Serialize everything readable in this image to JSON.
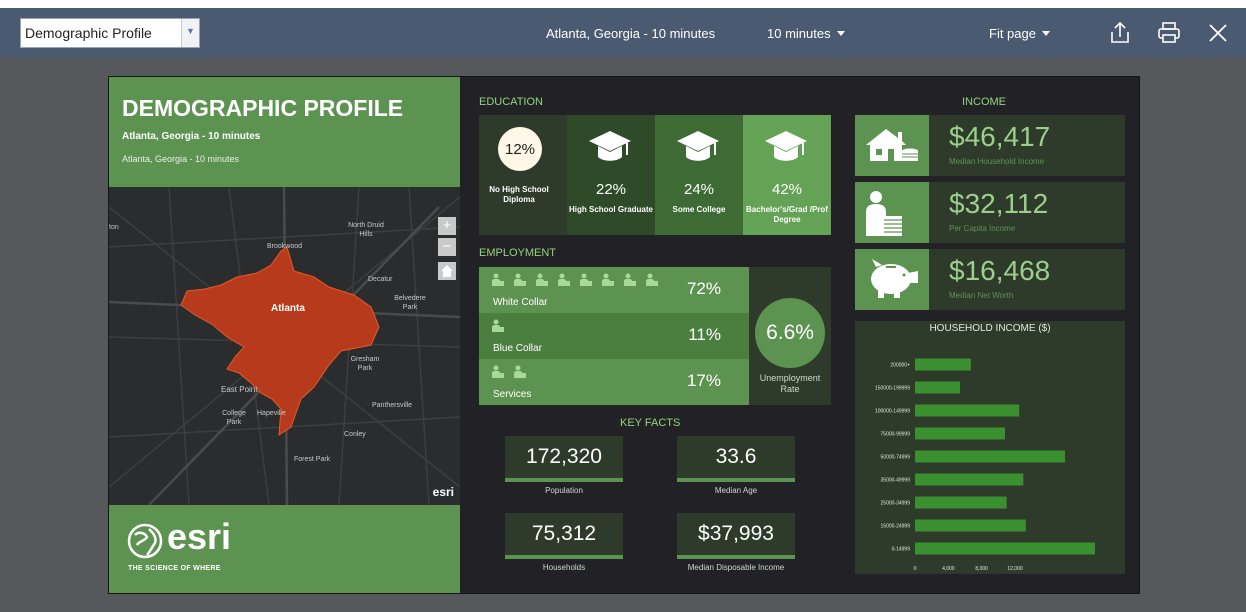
{
  "toolbar": {
    "dropdown_value": "Demographic Profile",
    "location": "Atlanta, Georgia - 10 minutes",
    "drive_time": "10 minutes",
    "fit": "Fit page",
    "icons": [
      "share-icon",
      "print-icon",
      "close-icon"
    ]
  },
  "header": {
    "title": "DEMOGRAPHIC PROFILE",
    "subtitle": "Atlanta, Georgia - 10 minutes",
    "subtitle2": "Atlanta, Georgia - 10 minutes"
  },
  "map": {
    "labels": [
      "ton",
      "North Druid Hills",
      "Brookwood",
      "Decatur",
      "Belvedere Park",
      "Atlanta",
      "Gresham Park",
      "East Point",
      "Panthersville",
      "College Park",
      "Hapeville",
      "Conley",
      "Forest Park"
    ],
    "attribution": "esri",
    "zoom_in": "+",
    "zoom_out": "−"
  },
  "footer": {
    "brand": "esri",
    "tagline": "THE SCIENCE OF WHERE"
  },
  "education": {
    "title": "EDUCATION",
    "items": [
      {
        "pct": "12%",
        "label": "No High School Diploma",
        "color": "#2e3b2a"
      },
      {
        "pct": "22%",
        "label": "High School Graduate",
        "color": "#2f4a28"
      },
      {
        "pct": "24%",
        "label": "Some College",
        "color": "#3e6a34"
      },
      {
        "pct": "42%",
        "label": "Bachelor's/Grad /Prof Degree",
        "color": "#64a256"
      }
    ]
  },
  "employment": {
    "title": "EMPLOYMENT",
    "rows": [
      {
        "label": "White Collar",
        "pct": "72%",
        "icons": 8,
        "color": "#5d9351"
      },
      {
        "label": "Blue Collar",
        "pct": "11%",
        "icons": 1,
        "color": "#4b7f40"
      },
      {
        "label": "Services",
        "pct": "17%",
        "icons": 2,
        "color": "#5d9351"
      }
    ],
    "unemployment_value": "6.6%",
    "unemployment_label": "Unemployment Rate"
  },
  "key_facts": {
    "title": "KEY FACTS",
    "items": [
      {
        "value": "172,320",
        "label": "Population"
      },
      {
        "value": "33.6",
        "label": "Median Age"
      },
      {
        "value": "75,312",
        "label": "Households"
      },
      {
        "value": "$37,993",
        "label": "Median Disposable Income"
      }
    ]
  },
  "income": {
    "title": "INCOME",
    "items": [
      {
        "value": "$46,417",
        "label": "Median Household Income",
        "icon": "house-icon"
      },
      {
        "value": "$32,112",
        "label": "Per Capita Income",
        "icon": "person-coins-icon"
      },
      {
        "value": "$16,468",
        "label": "Median Net Worth",
        "icon": "piggy-bank-icon"
      }
    ]
  },
  "chart_data": {
    "type": "bar",
    "orientation": "horizontal",
    "title": "HOUSEHOLD INCOME ($)",
    "categories": [
      "200000+",
      "150000-199999",
      "100000-149999",
      "75000-99999",
      "50000-74999",
      "35000-49999",
      "25000-34999",
      "15000-24999",
      "0-14999"
    ],
    "values": [
      6700,
      5400,
      12500,
      10800,
      18000,
      13000,
      11000,
      13300,
      21600
    ],
    "xticks": [
      0,
      4000,
      8000,
      12000
    ],
    "xtick_labels": [
      "0",
      "4,000",
      "8,000",
      "12,000"
    ],
    "xlim": [
      0,
      22800
    ],
    "bar_color": "#3a8f2e",
    "grid": false
  }
}
